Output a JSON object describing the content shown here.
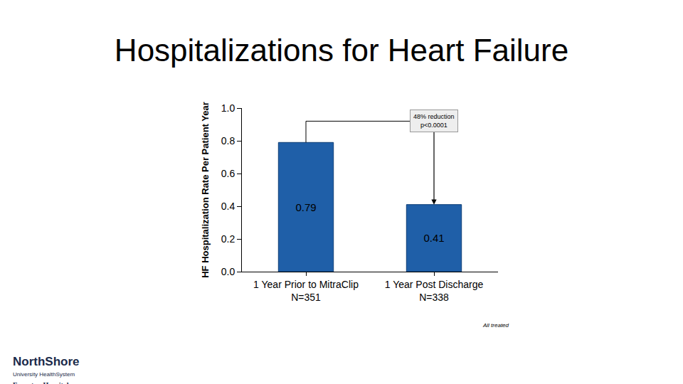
{
  "chart_data": {
    "type": "bar",
    "title": "Hospitalizations for Heart Failure",
    "ylabel": "HF Hospitalization Rate Per Patient Year",
    "categories": [
      "1 Year Prior to MitraClip",
      "1 Year Post Discharge"
    ],
    "category_notes": [
      "N=351",
      "N=338"
    ],
    "values": [
      0.79,
      0.41
    ],
    "color": "#1f5fa8",
    "data_labels": true,
    "ylim": [
      0,
      1.0
    ],
    "yticks": [
      {
        "value": 0,
        "label": "0.0"
      },
      0.2,
      0.4,
      0.6,
      0.8,
      {
        "value": 1.0,
        "label": "1.0"
      }
    ],
    "grid": false,
    "annotation": [
      "48% reduction",
      "p<0.0001"
    ],
    "footnote": "All treated",
    "logo": [
      "NorthShore",
      "University HealthSystem",
      "Evanston Hospital"
    ]
  }
}
